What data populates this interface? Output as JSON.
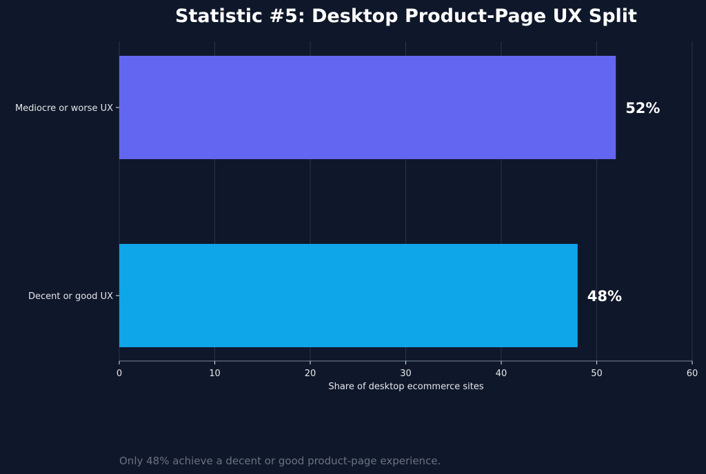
{
  "chart_data": {
    "type": "bar",
    "orientation": "horizontal",
    "title": "Statistic #5: Desktop Product-Page UX Split",
    "xlabel": "Share of desktop ecommerce sites",
    "ylabel": "",
    "xlim": [
      0,
      60
    ],
    "xticks": [
      0,
      10,
      20,
      30,
      40,
      50,
      60
    ],
    "grid": true,
    "categories": [
      "Mediocre or worse UX",
      "Decent or good UX"
    ],
    "values": [
      52,
      48
    ],
    "value_labels": [
      "52%",
      "48%"
    ],
    "colors": [
      "#6366f1",
      "#0ea5e9"
    ]
  },
  "footnote": "Only 48% achieve a decent or good product-page experience.",
  "theme": {
    "background": "#0f172a",
    "grid": "#334155",
    "axis": "#64748b",
    "text": "#e5e7eb",
    "muted": "#6b7280"
  }
}
